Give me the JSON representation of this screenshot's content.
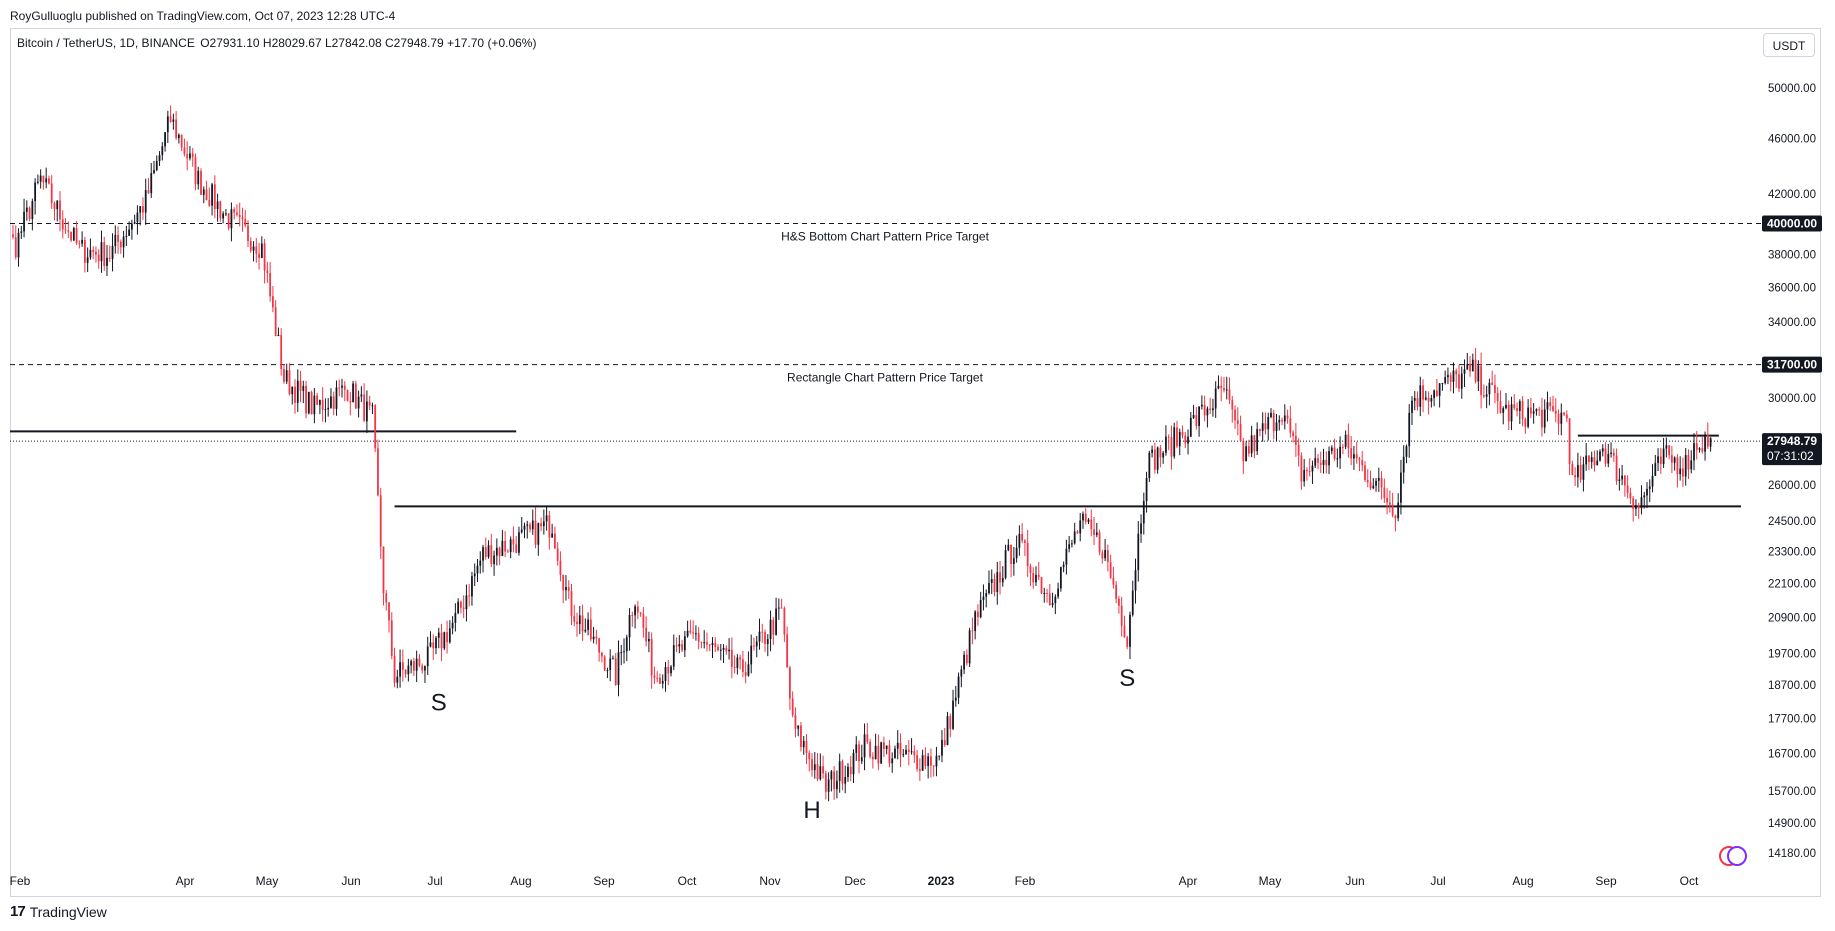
{
  "header": {
    "published": "RoyGulluoglu published on TradingView.com, Oct 07, 2023 12:28 UTC-4"
  },
  "legend": {
    "symbol": "Bitcoin / TetherUS, 1D, BINANCE",
    "ohlc": "O27931.10  H28029.67  L27842.08  C27948.79  +17.70 (+0.06%)"
  },
  "currency_label": "USDT",
  "footer": {
    "brand": "TradingView"
  },
  "colors": {
    "up": "#131722",
    "down": "#f23645",
    "line": "#131722",
    "axis_text": "#131722",
    "price_tag_bg": "#131722"
  },
  "chart_data": {
    "type": "candlestick",
    "scale": "log",
    "title": "Bitcoin / TetherUS, 1D, BINANCE",
    "x_ticks": [
      "Feb",
      "Apr",
      "May",
      "Jun",
      "Jul",
      "Aug",
      "Sep",
      "Oct",
      "Nov",
      "Dec",
      "2023",
      "Feb",
      "Apr",
      "May",
      "Jun",
      "Jul",
      "Aug",
      "Sep",
      "Oct"
    ],
    "y_ticks": [
      "50000.00",
      "46000.00",
      "42000.00",
      "38000.00",
      "36000.00",
      "34000.00",
      "30000.00",
      "26000.00",
      "24500.00",
      "23300.00",
      "22100.00",
      "20900.00",
      "19700.00",
      "18700.00",
      "17700.00",
      "16700.00",
      "15700.00",
      "14900.00",
      "14180.00"
    ],
    "price_tags": [
      {
        "label": "40000.00",
        "value": 40000
      },
      {
        "label": "31700.00",
        "value": 31700
      },
      {
        "label": "27948.79",
        "value": 27948.79,
        "countdown": "07:31:02"
      }
    ],
    "annotations": [
      {
        "text": "H&S Bottom Chart Pattern Price Target",
        "value": 40000,
        "style": "dashed"
      },
      {
        "text": "Rectangle Chart Pattern Price Target",
        "value": 31700,
        "style": "dashed"
      }
    ],
    "pattern_labels": [
      {
        "text": "S",
        "date": "2022-07-04",
        "value": 18200
      },
      {
        "text": "H",
        "date": "2022-11-16",
        "value": 15250
      },
      {
        "text": "S",
        "date": "2023-03-10",
        "value": 18950
      }
    ],
    "horizontal_lines": [
      {
        "value": 28400,
        "from": "2022-01-15",
        "to": "2022-08-01"
      },
      {
        "value": 25100,
        "from": "2022-06-18",
        "to": "2023-10-18"
      },
      {
        "value": 28200,
        "from": "2023-08-20",
        "to": "2023-10-10"
      }
    ],
    "series": [
      {
        "date": "2022-01-15",
        "close": 41500
      },
      {
        "date": "2022-02-01",
        "close": 38600
      },
      {
        "date": "2022-02-10",
        "close": 43000
      },
      {
        "date": "2022-02-24",
        "close": 38300
      },
      {
        "date": "2022-03-07",
        "close": 38000
      },
      {
        "date": "2022-03-20",
        "close": 41500
      },
      {
        "date": "2022-03-29",
        "close": 47500
      },
      {
        "date": "2022-04-08",
        "close": 43000
      },
      {
        "date": "2022-04-18",
        "close": 40500
      },
      {
        "date": "2022-05-01",
        "close": 38500
      },
      {
        "date": "2022-05-09",
        "close": 31000
      },
      {
        "date": "2022-05-20",
        "close": 29500
      },
      {
        "date": "2022-06-01",
        "close": 30500
      },
      {
        "date": "2022-06-10",
        "close": 29000
      },
      {
        "date": "2022-06-14",
        "close": 22000
      },
      {
        "date": "2022-06-18",
        "close": 19000
      },
      {
        "date": "2022-06-30",
        "close": 19500
      },
      {
        "date": "2022-07-10",
        "close": 20800
      },
      {
        "date": "2022-07-20",
        "close": 23200
      },
      {
        "date": "2022-07-30",
        "close": 23600
      },
      {
        "date": "2022-08-14",
        "close": 24400
      },
      {
        "date": "2022-08-20",
        "close": 21400
      },
      {
        "date": "2022-09-06",
        "close": 19000
      },
      {
        "date": "2022-09-13",
        "close": 21700
      },
      {
        "date": "2022-09-20",
        "close": 19000
      },
      {
        "date": "2022-10-05",
        "close": 20300
      },
      {
        "date": "2022-10-21",
        "close": 19100
      },
      {
        "date": "2022-11-05",
        "close": 21100
      },
      {
        "date": "2022-11-09",
        "close": 17500
      },
      {
        "date": "2022-11-21",
        "close": 15800
      },
      {
        "date": "2022-12-05",
        "close": 16900
      },
      {
        "date": "2022-12-20",
        "close": 16600
      },
      {
        "date": "2023-01-01",
        "close": 16550
      },
      {
        "date": "2023-01-14",
        "close": 20800
      },
      {
        "date": "2023-01-29",
        "close": 23700
      },
      {
        "date": "2023-02-10",
        "close": 21600
      },
      {
        "date": "2023-02-21",
        "close": 24400
      },
      {
        "date": "2023-03-01",
        "close": 23500
      },
      {
        "date": "2023-03-10",
        "close": 20300
      },
      {
        "date": "2023-03-17",
        "close": 26900
      },
      {
        "date": "2023-03-30",
        "close": 28300
      },
      {
        "date": "2023-04-14",
        "close": 30400
      },
      {
        "date": "2023-04-21",
        "close": 27300
      },
      {
        "date": "2023-05-05",
        "close": 29500
      },
      {
        "date": "2023-05-12",
        "close": 26500
      },
      {
        "date": "2023-05-28",
        "close": 27700
      },
      {
        "date": "2023-06-15",
        "close": 25000
      },
      {
        "date": "2023-06-21",
        "close": 30000
      },
      {
        "date": "2023-07-13",
        "close": 31300
      },
      {
        "date": "2023-07-25",
        "close": 29300
      },
      {
        "date": "2023-08-16",
        "close": 29100
      },
      {
        "date": "2023-08-18",
        "close": 26000
      },
      {
        "date": "2023-08-29",
        "close": 27700
      },
      {
        "date": "2023-09-11",
        "close": 25100
      },
      {
        "date": "2023-09-20",
        "close": 27200
      },
      {
        "date": "2023-09-28",
        "close": 26900
      },
      {
        "date": "2023-10-02",
        "close": 27900
      },
      {
        "date": "2023-10-07",
        "close": 27948.79
      }
    ]
  }
}
